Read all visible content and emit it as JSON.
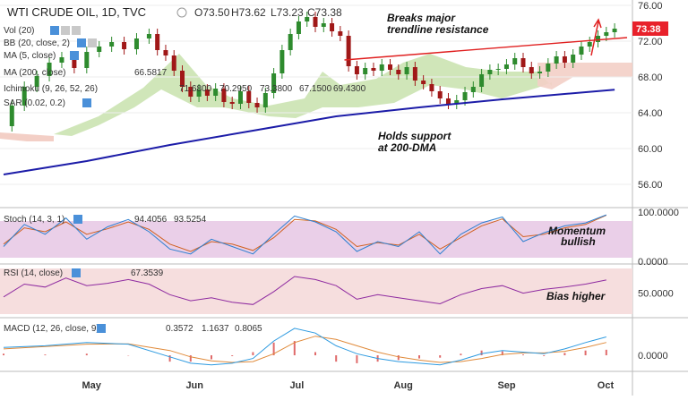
{
  "header": {
    "symbol": "WTI CRUDE OIL, 1D, TVC",
    "open": "O73.50",
    "high": "H73.62",
    "low": "L73.23",
    "close": "C73.38"
  },
  "colors": {
    "price": "#1e6e1e",
    "candle_up": "#2e8b2e",
    "candle_down": "#a01818",
    "ma200": "#1c1ca8",
    "trendline": "#e02020",
    "cloud_green": "#b7d99a",
    "cloud_red": "#f3cfc6",
    "stoch_k": "#2d7fd0",
    "stoch_d": "#d06020",
    "stoch_band": "#d9b0d6",
    "rsi_line": "#8e2aa0",
    "rsi_band": "#f1d2d2",
    "macd_line": "#2d9ae0",
    "signal_line": "#e08a3a",
    "hist": "#e06a6a",
    "last_price_tag": "#e8212b"
  },
  "price_panel": {
    "legend": {
      "vol": "Vol (20)",
      "bb": "BB (20, close, 2)",
      "ma5": "MA (5, close)",
      "ma200": "MA (200, close)",
      "ma200_value": "66.5817",
      "ichimoku": "Ichimoku (9, 26, 52, 26)",
      "ichimoku_values": [
        "71.6800",
        "70.2950",
        "73.3800",
        "67.1500",
        "69.4300"
      ],
      "sar": "SAR (0.02, 0.2)"
    },
    "annotations": {
      "resistance": [
        "Breaks major",
        "trendline resistance"
      ],
      "support": [
        "Holds support",
        "at 200-DMA"
      ]
    },
    "last_price": "73.38"
  },
  "stoch_panel": {
    "legend": "Stoch (14, 3, 1)",
    "values": [
      "94.4056",
      "93.5254"
    ],
    "annotation": [
      "Momentum",
      "bullish"
    ]
  },
  "rsi_panel": {
    "legend": "RSI (14, close)",
    "value": "67.3539",
    "annotation": "Bias higher"
  },
  "macd_panel": {
    "legend": "MACD (12, 26, close, 9)",
    "values": [
      "0.3572",
      "1.1637",
      "0.8065"
    ]
  },
  "chart_data": [
    {
      "type": "line",
      "name": "price",
      "x_range": [
        0,
        150
      ],
      "ylim": [
        54,
        76
      ],
      "y_ticks": [
        "76.00",
        "72.00",
        "68.00",
        "64.00",
        "60.00",
        "56.00"
      ],
      "x_ticks": [
        {
          "label": "May",
          "x": 21
        },
        {
          "label": "Jun",
          "x": 46
        },
        {
          "label": "Jul",
          "x": 71
        },
        {
          "label": "Aug",
          "x": 96
        },
        {
          "label": "Sep",
          "x": 121
        },
        {
          "label": "Oct",
          "x": 145
        }
      ],
      "series": [
        {
          "name": "close",
          "values": [
            [
              0,
              62.5
            ],
            [
              2,
              64.8
            ],
            [
              5,
              66.9
            ],
            [
              8,
              68.1
            ],
            [
              11,
              69.6
            ],
            [
              14,
              70.2
            ],
            [
              17,
              69.0
            ],
            [
              20,
              70.8
            ],
            [
              23,
              71.4
            ],
            [
              26,
              71.9
            ],
            [
              29,
              71.1
            ],
            [
              32,
              72.3
            ],
            [
              35,
              72.8
            ],
            [
              37,
              71.0
            ],
            [
              39,
              70.4
            ],
            [
              41,
              68.7
            ],
            [
              43,
              66.9
            ],
            [
              45,
              65.8
            ],
            [
              47,
              66.6
            ],
            [
              49,
              65.9
            ],
            [
              51,
              66.7
            ],
            [
              53,
              65.2
            ],
            [
              55,
              65.0
            ],
            [
              57,
              66.4
            ],
            [
              59,
              65.1
            ],
            [
              61,
              64.6
            ],
            [
              63,
              66.2
            ],
            [
              65,
              68.4
            ],
            [
              67,
              71.0
            ],
            [
              69,
              72.8
            ],
            [
              71,
              74.2
            ],
            [
              73,
              74.7
            ],
            [
              75,
              73.6
            ],
            [
              77,
              74.0
            ],
            [
              79,
              73.1
            ],
            [
              81,
              72.6
            ],
            [
              83,
              69.2
            ],
            [
              85,
              68.3
            ],
            [
              87,
              69.0
            ],
            [
              89,
              68.7
            ],
            [
              91,
              69.4
            ],
            [
              93,
              68.8
            ],
            [
              95,
              68.3
            ],
            [
              97,
              69.1
            ],
            [
              99,
              67.6
            ],
            [
              101,
              67.2
            ],
            [
              103,
              66.4
            ],
            [
              105,
              65.6
            ],
            [
              107,
              65.0
            ],
            [
              109,
              65.4
            ],
            [
              111,
              66.3
            ],
            [
              113,
              66.9
            ],
            [
              115,
              68.3
            ],
            [
              117,
              68.8
            ],
            [
              119,
              68.9
            ],
            [
              121,
              69.4
            ],
            [
              123,
              70.1
            ],
            [
              125,
              69.1
            ],
            [
              127,
              68.4
            ],
            [
              129,
              68.6
            ],
            [
              131,
              69.5
            ],
            [
              133,
              70.3
            ],
            [
              135,
              69.6
            ],
            [
              137,
              70.5
            ],
            [
              139,
              71.4
            ],
            [
              141,
              71.9
            ],
            [
              143,
              72.6
            ],
            [
              145,
              73.0
            ],
            [
              147,
              73.4
            ]
          ]
        },
        {
          "name": "MA (200, close)",
          "values": [
            [
              0,
              57.1
            ],
            [
              20,
              58.6
            ],
            [
              40,
              60.4
            ],
            [
              60,
              62.0
            ],
            [
              80,
              63.6
            ],
            [
              100,
              64.6
            ],
            [
              120,
              65.5
            ],
            [
              147,
              66.58
            ]
          ]
        },
        {
          "name": "trendline",
          "values": [
            [
              82,
              69.9
            ],
            [
              150,
              72.4
            ]
          ]
        }
      ]
    },
    {
      "type": "line",
      "name": "stochastic",
      "ylim": [
        0,
        100
      ],
      "y_ticks": [
        "100.0000",
        "0.0000"
      ],
      "series": [
        {
          "name": "%K",
          "values": [
            [
              0,
              30
            ],
            [
              5,
              75
            ],
            [
              10,
              55
            ],
            [
              15,
              88
            ],
            [
              20,
              45
            ],
            [
              25,
              70
            ],
            [
              30,
              85
            ],
            [
              35,
              60
            ],
            [
              40,
              25
            ],
            [
              45,
              15
            ],
            [
              50,
              45
            ],
            [
              55,
              30
            ],
            [
              60,
              15
            ],
            [
              65,
              55
            ],
            [
              70,
              92
            ],
            [
              75,
              80
            ],
            [
              80,
              60
            ],
            [
              85,
              20
            ],
            [
              90,
              40
            ],
            [
              95,
              30
            ],
            [
              100,
              60
            ],
            [
              105,
              15
            ],
            [
              110,
              55
            ],
            [
              115,
              78
            ],
            [
              120,
              90
            ],
            [
              125,
              40
            ],
            [
              130,
              58
            ],
            [
              135,
              72
            ],
            [
              140,
              78
            ],
            [
              145,
              94.4
            ]
          ]
        },
        {
          "name": "%D",
          "values": [
            [
              0,
              35
            ],
            [
              5,
              68
            ],
            [
              10,
              60
            ],
            [
              15,
              80
            ],
            [
              20,
              55
            ],
            [
              25,
              66
            ],
            [
              30,
              80
            ],
            [
              35,
              65
            ],
            [
              40,
              35
            ],
            [
              45,
              20
            ],
            [
              50,
              40
            ],
            [
              55,
              35
            ],
            [
              60,
              22
            ],
            [
              65,
              48
            ],
            [
              70,
              85
            ],
            [
              75,
              82
            ],
            [
              80,
              65
            ],
            [
              85,
              30
            ],
            [
              90,
              38
            ],
            [
              95,
              33
            ],
            [
              100,
              55
            ],
            [
              105,
              25
            ],
            [
              110,
              48
            ],
            [
              115,
              72
            ],
            [
              120,
              86
            ],
            [
              125,
              50
            ],
            [
              130,
              55
            ],
            [
              135,
              68
            ],
            [
              140,
              75
            ],
            [
              145,
              93.5
            ]
          ]
        }
      ]
    },
    {
      "type": "line",
      "name": "rsi",
      "ylim": [
        20,
        85
      ],
      "y_ticks": [
        "50.0000"
      ],
      "series": [
        {
          "name": "RSI",
          "values": [
            [
              0,
              45
            ],
            [
              5,
              62
            ],
            [
              10,
              58
            ],
            [
              15,
              70
            ],
            [
              20,
              60
            ],
            [
              25,
              63
            ],
            [
              30,
              68
            ],
            [
              35,
              62
            ],
            [
              40,
              48
            ],
            [
              45,
              40
            ],
            [
              50,
              44
            ],
            [
              55,
              38
            ],
            [
              60,
              35
            ],
            [
              65,
              52
            ],
            [
              70,
              72
            ],
            [
              75,
              68
            ],
            [
              80,
              60
            ],
            [
              85,
              42
            ],
            [
              90,
              48
            ],
            [
              95,
              44
            ],
            [
              100,
              40
            ],
            [
              105,
              36
            ],
            [
              110,
              48
            ],
            [
              115,
              56
            ],
            [
              120,
              60
            ],
            [
              125,
              50
            ],
            [
              130,
              55
            ],
            [
              135,
              58
            ],
            [
              140,
              62
            ],
            [
              145,
              67.35
            ]
          ]
        }
      ]
    },
    {
      "type": "line",
      "name": "macd",
      "ylim": [
        -0.9,
        2.2
      ],
      "y_ticks": [
        "0.0000"
      ],
      "series": [
        {
          "name": "MACD",
          "values": [
            [
              0,
              0.5
            ],
            [
              10,
              0.6
            ],
            [
              20,
              0.8
            ],
            [
              30,
              0.7
            ],
            [
              40,
              -0.1
            ],
            [
              45,
              -0.5
            ],
            [
              50,
              -0.6
            ],
            [
              55,
              -0.5
            ],
            [
              60,
              -0.2
            ],
            [
              65,
              0.9
            ],
            [
              70,
              1.7
            ],
            [
              75,
              1.4
            ],
            [
              80,
              0.6
            ],
            [
              85,
              0.1
            ],
            [
              90,
              -0.2
            ],
            [
              95,
              -0.4
            ],
            [
              100,
              -0.5
            ],
            [
              105,
              -0.6
            ],
            [
              110,
              -0.3
            ],
            [
              115,
              0.1
            ],
            [
              120,
              0.3
            ],
            [
              125,
              0.2
            ],
            [
              130,
              0.1
            ],
            [
              135,
              0.4
            ],
            [
              140,
              0.8
            ],
            [
              145,
              1.16
            ]
          ]
        },
        {
          "name": "Signal",
          "values": [
            [
              0,
              0.4
            ],
            [
              10,
              0.55
            ],
            [
              20,
              0.7
            ],
            [
              30,
              0.72
            ],
            [
              40,
              0.3
            ],
            [
              45,
              -0.1
            ],
            [
              50,
              -0.35
            ],
            [
              55,
              -0.45
            ],
            [
              60,
              -0.4
            ],
            [
              65,
              0.1
            ],
            [
              70,
              0.8
            ],
            [
              75,
              1.2
            ],
            [
              80,
              1.0
            ],
            [
              85,
              0.6
            ],
            [
              90,
              0.2
            ],
            [
              95,
              -0.1
            ],
            [
              100,
              -0.3
            ],
            [
              105,
              -0.45
            ],
            [
              110,
              -0.4
            ],
            [
              115,
              -0.2
            ],
            [
              120,
              0.05
            ],
            [
              125,
              0.15
            ],
            [
              130,
              0.15
            ],
            [
              135,
              0.25
            ],
            [
              140,
              0.5
            ],
            [
              145,
              0.81
            ]
          ]
        }
      ]
    }
  ]
}
